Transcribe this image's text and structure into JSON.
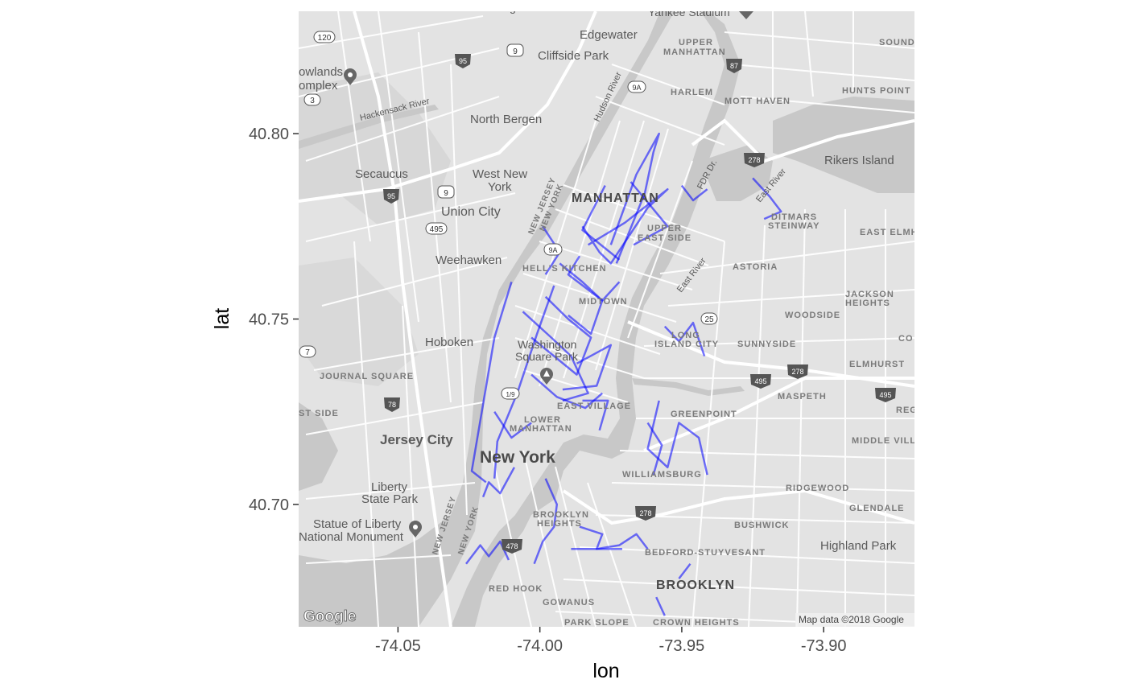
{
  "chart_data": {
    "type": "map-path",
    "xlabel": "lon",
    "ylabel": "lat",
    "xlim": [
      -74.085,
      -73.868
    ],
    "ylim": [
      40.667,
      40.833
    ],
    "x_ticks": [
      -74.05,
      -74.0,
      -73.95,
      -73.9
    ],
    "x_tick_labels": [
      "-74.05",
      "-74.00",
      "-73.95",
      "-73.90"
    ],
    "y_ticks": [
      40.7,
      40.75,
      40.8
    ],
    "y_tick_labels": [
      "40.70",
      "40.75",
      "40.80"
    ],
    "grid": false,
    "route_color": "#0000ff",
    "routes": [
      [
        [
          -74.01,
          40.76
        ],
        [
          -74.016,
          40.745
        ],
        [
          -74.024,
          40.709
        ],
        [
          -74.019,
          40.706
        ]
      ],
      [
        [
          -73.995,
          40.759
        ],
        [
          -74.001,
          40.746
        ],
        [
          -74.008,
          40.73
        ],
        [
          -74.015,
          40.717
        ],
        [
          -74.016,
          40.707
        ]
      ],
      [
        [
          -73.998,
          40.756
        ],
        [
          -73.99,
          40.75
        ],
        [
          -73.982,
          40.745
        ],
        [
          -73.987,
          40.735
        ],
        [
          -73.995,
          40.74
        ],
        [
          -74.003,
          40.745
        ]
      ],
      [
        [
          -73.993,
          40.765
        ],
        [
          -73.985,
          40.76
        ],
        [
          -73.978,
          40.755
        ],
        [
          -73.982,
          40.746
        ],
        [
          -73.99,
          40.751
        ]
      ],
      [
        [
          -74.006,
          40.752
        ],
        [
          -73.996,
          40.745
        ],
        [
          -73.989,
          40.74
        ],
        [
          -73.983,
          40.73
        ],
        [
          -73.992,
          40.728
        ]
      ],
      [
        [
          -73.987,
          40.738
        ],
        [
          -73.975,
          40.743
        ],
        [
          -73.98,
          40.732
        ],
        [
          -73.992,
          40.731
        ]
      ],
      [
        [
          -74.003,
          40.735
        ],
        [
          -73.994,
          40.729
        ],
        [
          -73.984,
          40.726
        ],
        [
          -73.978,
          40.73
        ]
      ],
      [
        [
          -73.985,
          40.775
        ],
        [
          -73.979,
          40.768
        ],
        [
          -73.975,
          40.765
        ],
        [
          -73.962,
          40.78
        ],
        [
          -73.955,
          40.785
        ],
        [
          -73.97,
          40.776
        ],
        [
          -73.983,
          40.77
        ]
      ],
      [
        [
          -73.973,
          40.765
        ],
        [
          -73.963,
          40.784
        ],
        [
          -73.96,
          40.795
        ],
        [
          -73.958,
          40.8
        ],
        [
          -73.966,
          40.789
        ],
        [
          -73.975,
          40.77
        ]
      ],
      [
        [
          -73.977,
          40.786
        ],
        [
          -73.985,
          40.774
        ],
        [
          -73.972,
          40.766
        ]
      ],
      [
        [
          -73.968,
          40.787
        ],
        [
          -73.955,
          40.775
        ],
        [
          -73.967,
          40.77
        ]
      ],
      [
        [
          -73.95,
          40.786
        ],
        [
          -73.946,
          40.782
        ],
        [
          -73.941,
          40.785
        ]
      ],
      [
        [
          -73.986,
          40.767
        ],
        [
          -73.99,
          40.762
        ],
        [
          -73.978,
          40.755
        ],
        [
          -73.972,
          40.76
        ]
      ],
      [
        [
          -73.956,
          40.748
        ],
        [
          -73.951,
          40.744
        ],
        [
          -73.946,
          40.749
        ],
        [
          -73.942,
          40.74
        ]
      ],
      [
        [
          -73.958,
          40.728
        ],
        [
          -73.962,
          40.715
        ],
        [
          -73.955,
          40.71
        ],
        [
          -73.951,
          40.722
        ],
        [
          -73.944,
          40.718
        ],
        [
          -73.941,
          40.708
        ]
      ],
      [
        [
          -73.962,
          40.722
        ],
        [
          -73.957,
          40.716
        ],
        [
          -73.96,
          40.708
        ]
      ],
      [
        [
          -74.009,
          40.71
        ],
        [
          -74.014,
          40.703
        ],
        [
          -74.018,
          40.706
        ],
        [
          -74.02,
          40.702
        ]
      ],
      [
        [
          -73.998,
          40.707
        ],
        [
          -73.994,
          40.7
        ],
        [
          -73.995,
          40.694
        ],
        [
          -73.999,
          40.69
        ],
        [
          -74.002,
          40.684
        ]
      ],
      [
        [
          -73.986,
          40.694
        ],
        [
          -73.978,
          40.692
        ],
        [
          -73.98,
          40.688
        ],
        [
          -73.972,
          40.689
        ],
        [
          -73.966,
          40.692
        ],
        [
          -73.962,
          40.688
        ]
      ],
      [
        [
          -73.989,
          40.688
        ],
        [
          -73.971,
          40.688
        ]
      ],
      [
        [
          -74.026,
          40.684
        ],
        [
          -74.021,
          40.689
        ],
        [
          -74.018,
          40.686
        ],
        [
          -74.014,
          40.69
        ],
        [
          -74.011,
          40.685
        ]
      ],
      [
        [
          -73.959,
          40.675
        ],
        [
          -73.956,
          40.67
        ]
      ],
      [
        [
          -73.951,
          40.68
        ],
        [
          -73.947,
          40.684
        ]
      ],
      [
        [
          -73.925,
          40.788
        ],
        [
          -73.919,
          40.783
        ],
        [
          -73.915,
          40.779
        ],
        [
          -73.921,
          40.777
        ]
      ],
      [
        [
          -74.016,
          40.725
        ],
        [
          -74.01,
          40.718
        ],
        [
          -74.003,
          40.722
        ]
      ],
      [
        [
          -73.985,
          40.728
        ],
        [
          -73.976,
          40.728
        ],
        [
          -73.979,
          40.72
        ]
      ],
      [
        [
          -73.999,
          40.775
        ],
        [
          -73.993,
          40.768
        ],
        [
          -73.998,
          40.762
        ]
      ]
    ],
    "map_labels": {
      "edgewater": "Edgewater",
      "cliffside_park": "Cliffside Park",
      "upper_manhattan_1": "UPPER",
      "upper_manhattan_2": "MANHATTAN",
      "harlem": "HARLEM",
      "mott_haven": "MOTT HAVEN",
      "hunts_point": "HUNTS POINT",
      "sound": "SOUND",
      "meadowlands_1": "owlands",
      "meadowlands_2": "omplex",
      "hackensack_river": "Hackensack River",
      "north_bergen": "North Bergen",
      "hudson_river": "Hudson River",
      "rikers_island": "Rikers Island",
      "secaucus": "Secaucus",
      "west_new_york_1": "West New",
      "west_new_york_2": "York",
      "manhattan": "MANHATTAN",
      "fdr_dr": "FDR Dr.",
      "east_river_1": "East River",
      "ditmars_1": "DITMARS",
      "ditmars_2": "STEINWAY",
      "union_city": "Union City",
      "new_jersey_1": "NEW JERSEY",
      "new_york_1": "NEW YORK",
      "upper_east_side_1": "UPPER",
      "upper_east_side_2": "EAST SIDE",
      "east_elmh": "EAST ELMH",
      "weehawken": "Weehawken",
      "hells_kitchen": "HELL'S KITCHEN",
      "astoria": "ASTORIA",
      "east_river_2": "East River",
      "jackson_1": "JACKSON",
      "jackson_2": "HEIGHTS",
      "midtown": "MIDTOWN",
      "woodside": "WOODSIDE",
      "hoboken": "Hoboken",
      "washington_1": "Washington",
      "washington_2": "Square Park",
      "long_island_1": "LONG",
      "long_island_2": "ISLAND CITY",
      "sunnyside": "SUNNYSIDE",
      "co": "CO",
      "journal_square": "JOURNAL SQUARE",
      "elmhurst": "ELMHURST",
      "maspeth": "MASPETH",
      "st_side": "ST SIDE",
      "east_village": "EAST VILLAGE",
      "lower_manhattan_1": "LOWER",
      "lower_manhattan_2": "MANHATTAN",
      "greenpoint": "GREENPOINT",
      "reg": "REG",
      "jersey_city": "Jersey City",
      "middle_vill": "MIDDLE VILL",
      "new_york_big": "New York",
      "williamsburg": "WILLIAMSBURG",
      "liberty_1": "Liberty",
      "liberty_2": "State Park",
      "ridgewood": "RIDGEWOOD",
      "new_jersey_2": "NEW JERSEY",
      "new_york_2": "NEW YORK",
      "brooklyn_heights_1": "BROOKLYN",
      "brooklyn_heights_2": "HEIGHTS",
      "glendale": "GLENDALE",
      "statue_1": "Statue of Liberty",
      "statue_2": "National Monument",
      "bushwick": "BUSHWICK",
      "highland_park": "Highland Park",
      "bedford": "BEDFORD-STUYVESANT",
      "brooklyn": "BROOKLYN",
      "red_hook": "RED HOOK",
      "gowanus": "GOWANUS",
      "park_slope": "PARK SLOPE",
      "crown_heights": "CROWN HEIGHTS",
      "yankee_stadium": "Yankee Stadium",
      "ridgefield": "Ridgefield"
    },
    "shields": {
      "r120": "120",
      "i95a": "95",
      "us9a": "9",
      "r9a_1": "9A",
      "i87": "87",
      "r3": "3",
      "i278a": "278",
      "i95b": "95",
      "us9b": "9",
      "r495": "495",
      "r9a_2": "9A",
      "r25": "25",
      "r7": "7",
      "i495a": "495",
      "i278b": "278",
      "i495b": "495",
      "i78": "78",
      "r1_9": "1/9",
      "i278c": "278",
      "i478": "478"
    },
    "attribution": "Map data ©2018 Google",
    "google_logo": "Google"
  }
}
